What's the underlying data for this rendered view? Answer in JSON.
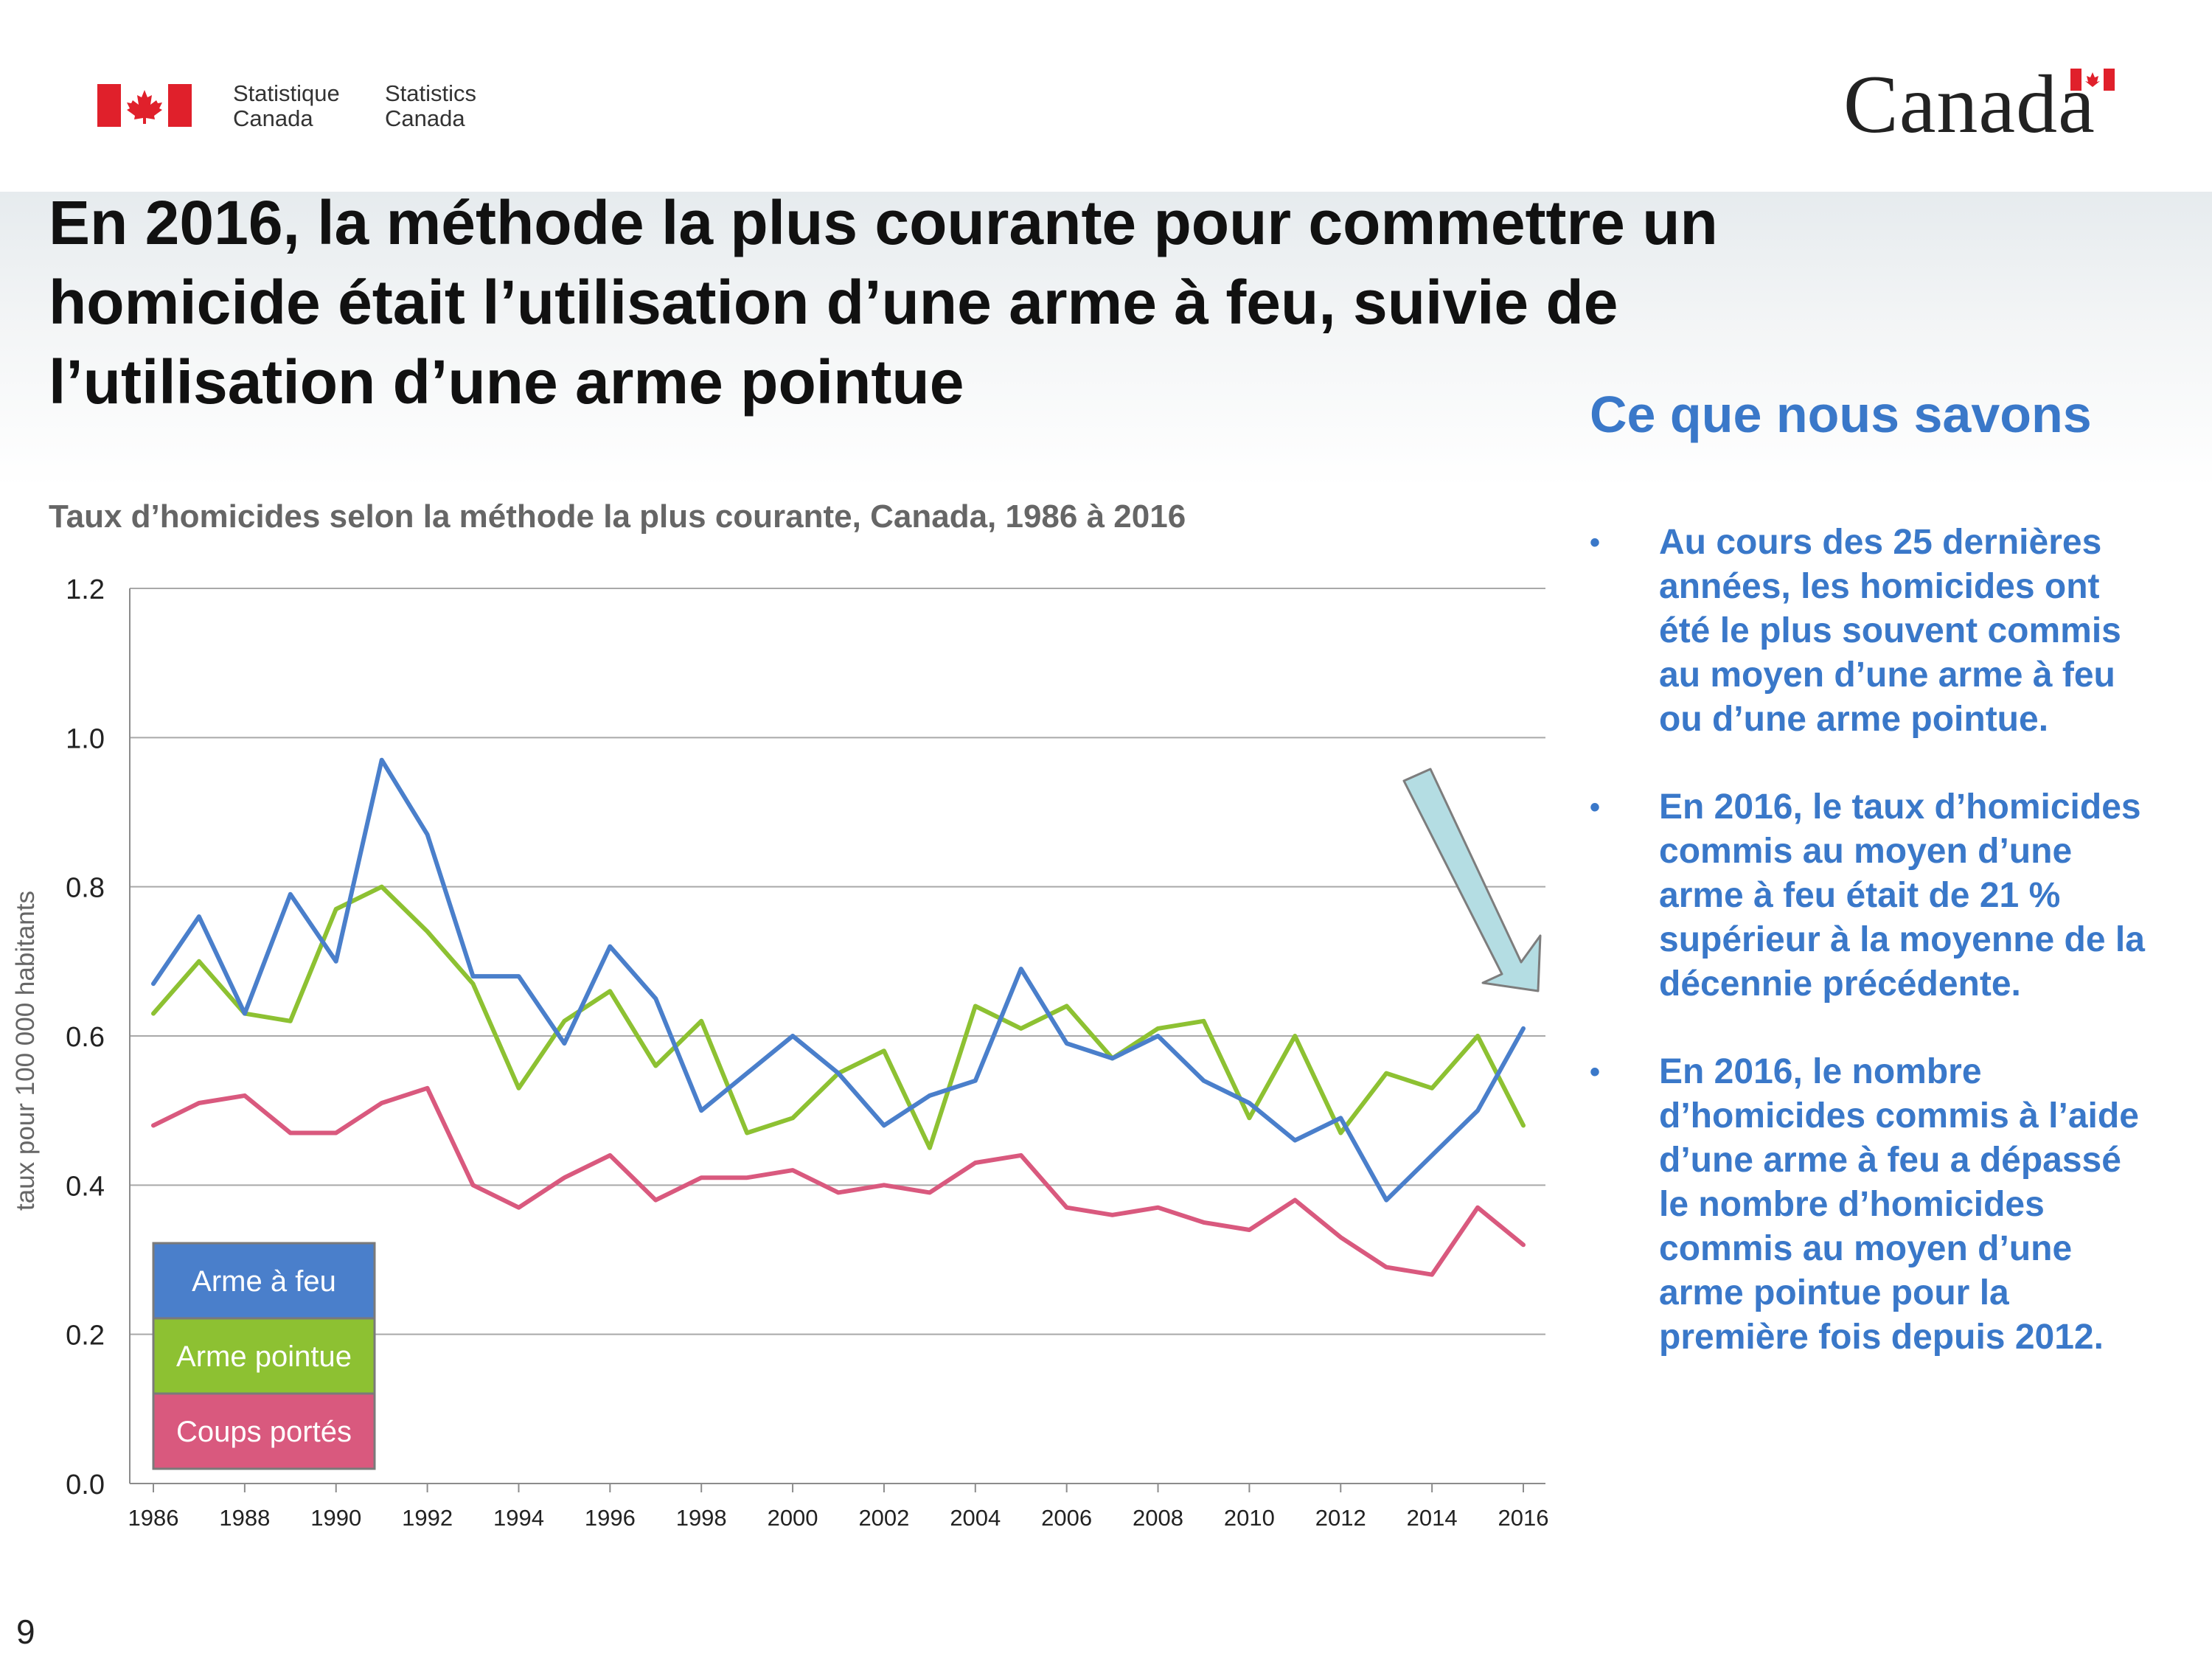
{
  "header": {
    "fip_fr": [
      "Statistique",
      "Canada"
    ],
    "fip_en": [
      "Statistics",
      "Canada"
    ],
    "wordmark": "Canada"
  },
  "title": "En 2016, la méthode la plus courante pour commettre un homicide était l’utilisation d’une arme à feu, suivie de l’utilisation d’une arme pointue",
  "side": {
    "title": "Ce que nous savons",
    "bullets": [
      "Au cours des 25 dernières années, les homicides ont été le plus souvent commis au moyen d’une arme à feu ou d’une arme pointue.",
      "En 2016, le taux d’homicides commis au moyen d’une arme à feu était de 21 % supérieur à la moyenne de la décennie précédente.",
      "En 2016, le nombre d’homicides commis à l’aide d’une arme à feu a dépassé le nombre d’homicides commis au moyen d’une arme pointue pour la première fois depuis 2012."
    ],
    "bullet_glyph": "•"
  },
  "page_number": "9",
  "colors": {
    "firearm": "#4a7fcb",
    "sharp": "#8dc132",
    "beating": "#d9597e",
    "accent_text": "#3a78c9",
    "arrow": "#b4dde3"
  },
  "chart_data": {
    "type": "line",
    "title": "Taux d’homicides selon la méthode la plus courante, Canada, 1986 à 2016",
    "xlabel": "",
    "ylabel": "taux pour 100 000 habitants",
    "ylim": [
      0,
      1.2
    ],
    "yticks": [
      "0.0",
      "0.2",
      "0.4",
      "0.6",
      "0.8",
      "1.0",
      "1.2"
    ],
    "x": [
      1986,
      1987,
      1988,
      1989,
      1990,
      1991,
      1992,
      1993,
      1994,
      1995,
      1996,
      1997,
      1998,
      1999,
      2000,
      2001,
      2002,
      2003,
      2004,
      2005,
      2006,
      2007,
      2008,
      2009,
      2010,
      2011,
      2012,
      2013,
      2014,
      2015,
      2016
    ],
    "xtick_labels": [
      "1986",
      "1988",
      "1990",
      "1992",
      "1994",
      "1996",
      "1998",
      "2000",
      "2002",
      "2004",
      "2006",
      "2008",
      "2010",
      "2012",
      "2014",
      "2016"
    ],
    "grid": true,
    "legend_position": "bottom-left",
    "series": [
      {
        "name": "Arme à feu",
        "color": "#4a7fcb",
        "values": [
          0.67,
          0.76,
          0.63,
          0.79,
          0.7,
          0.97,
          0.87,
          0.68,
          0.68,
          0.59,
          0.72,
          0.65,
          0.5,
          0.55,
          0.6,
          0.55,
          0.48,
          0.52,
          0.54,
          0.69,
          0.59,
          0.57,
          0.6,
          0.54,
          0.51,
          0.46,
          0.49,
          0.38,
          0.44,
          0.5,
          0.61
        ]
      },
      {
        "name": "Arme pointue",
        "color": "#8dc132",
        "values": [
          0.63,
          0.7,
          0.63,
          0.62,
          0.77,
          0.8,
          0.74,
          0.67,
          0.53,
          0.62,
          0.66,
          0.56,
          0.62,
          0.47,
          0.49,
          0.55,
          0.58,
          0.45,
          0.64,
          0.61,
          0.64,
          0.57,
          0.61,
          0.62,
          0.49,
          0.6,
          0.47,
          0.55,
          0.53,
          0.6,
          0.48
        ]
      },
      {
        "name": "Coups portés",
        "color": "#d9597e",
        "values": [
          0.48,
          0.51,
          0.52,
          0.47,
          0.47,
          0.51,
          0.53,
          0.4,
          0.37,
          0.41,
          0.44,
          0.38,
          0.41,
          0.41,
          0.42,
          0.39,
          0.4,
          0.39,
          0.43,
          0.44,
          0.37,
          0.36,
          0.37,
          0.35,
          0.34,
          0.38,
          0.33,
          0.29,
          0.28,
          0.37,
          0.32
        ]
      }
    ]
  }
}
